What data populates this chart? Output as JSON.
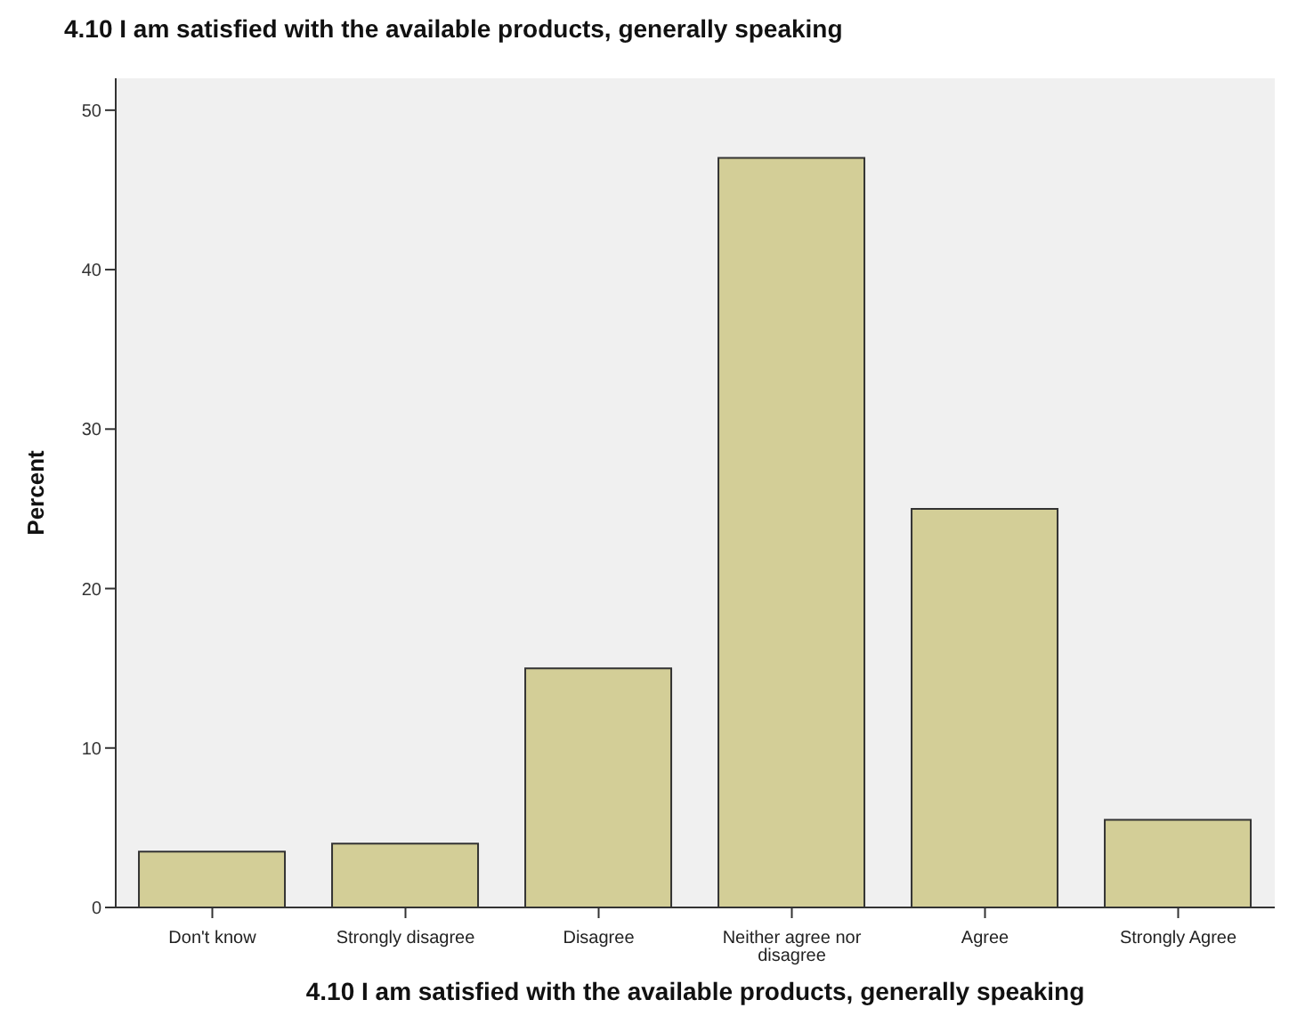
{
  "chart_data": {
    "type": "bar",
    "title": "4.10 I am satisfied with the available products, generally speaking",
    "xlabel": "4.10 I am satisfied with the available products, generally speaking",
    "ylabel": "Percent",
    "categories": [
      "Don't know",
      "Strongly disagree",
      "Disagree",
      "Neither agree nor disagree",
      "Agree",
      "Strongly Agree"
    ],
    "values": [
      3.5,
      4,
      15,
      47,
      25,
      5.5
    ],
    "color": "#d3ce97",
    "ylim": [
      0,
      52
    ],
    "yticks": [
      0,
      10,
      20,
      30,
      40,
      50
    ],
    "grid": false
  }
}
